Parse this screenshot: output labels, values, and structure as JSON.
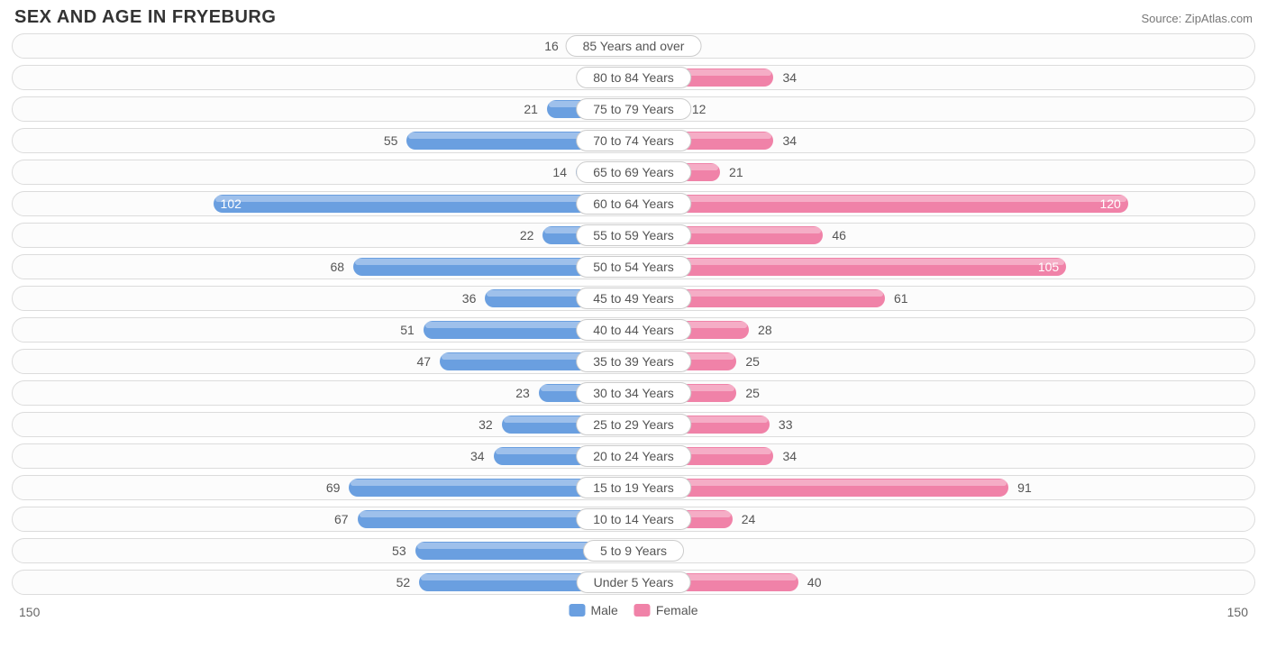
{
  "title": "SEX AND AGE IN FRYEBURG",
  "source": "Source: ZipAtlas.com",
  "chart": {
    "type": "population-pyramid",
    "axis_max": 150,
    "axis_label_left": "150",
    "axis_label_right": "150",
    "male_color": "#6a9fe0",
    "female_color": "#f082a8",
    "row_bg": "#fcfcfc",
    "row_border": "#dcdcdc",
    "pill_bg": "#ffffff",
    "pill_border": "#cccccc",
    "inside_threshold": 95,
    "legend": [
      {
        "label": "Male",
        "color": "#6a9fe0"
      },
      {
        "label": "Female",
        "color": "#f082a8"
      }
    ],
    "rows": [
      {
        "category": "85 Years and over",
        "male": 16,
        "female": 8
      },
      {
        "category": "80 to 84 Years",
        "male": 0,
        "female": 34
      },
      {
        "category": "75 to 79 Years",
        "male": 21,
        "female": 12
      },
      {
        "category": "70 to 74 Years",
        "male": 55,
        "female": 34
      },
      {
        "category": "65 to 69 Years",
        "male": 14,
        "female": 21
      },
      {
        "category": "60 to 64 Years",
        "male": 102,
        "female": 120
      },
      {
        "category": "55 to 59 Years",
        "male": 22,
        "female": 46
      },
      {
        "category": "50 to 54 Years",
        "male": 68,
        "female": 105
      },
      {
        "category": "45 to 49 Years",
        "male": 36,
        "female": 61
      },
      {
        "category": "40 to 44 Years",
        "male": 51,
        "female": 28
      },
      {
        "category": "35 to 39 Years",
        "male": 47,
        "female": 25
      },
      {
        "category": "30 to 34 Years",
        "male": 23,
        "female": 25
      },
      {
        "category": "25 to 29 Years",
        "male": 32,
        "female": 33
      },
      {
        "category": "20 to 24 Years",
        "male": 34,
        "female": 34
      },
      {
        "category": "15 to 19 Years",
        "male": 69,
        "female": 91
      },
      {
        "category": "10 to 14 Years",
        "male": 67,
        "female": 24
      },
      {
        "category": "5 to 9 Years",
        "male": 53,
        "female": 0
      },
      {
        "category": "Under 5 Years",
        "male": 52,
        "female": 40
      }
    ]
  }
}
